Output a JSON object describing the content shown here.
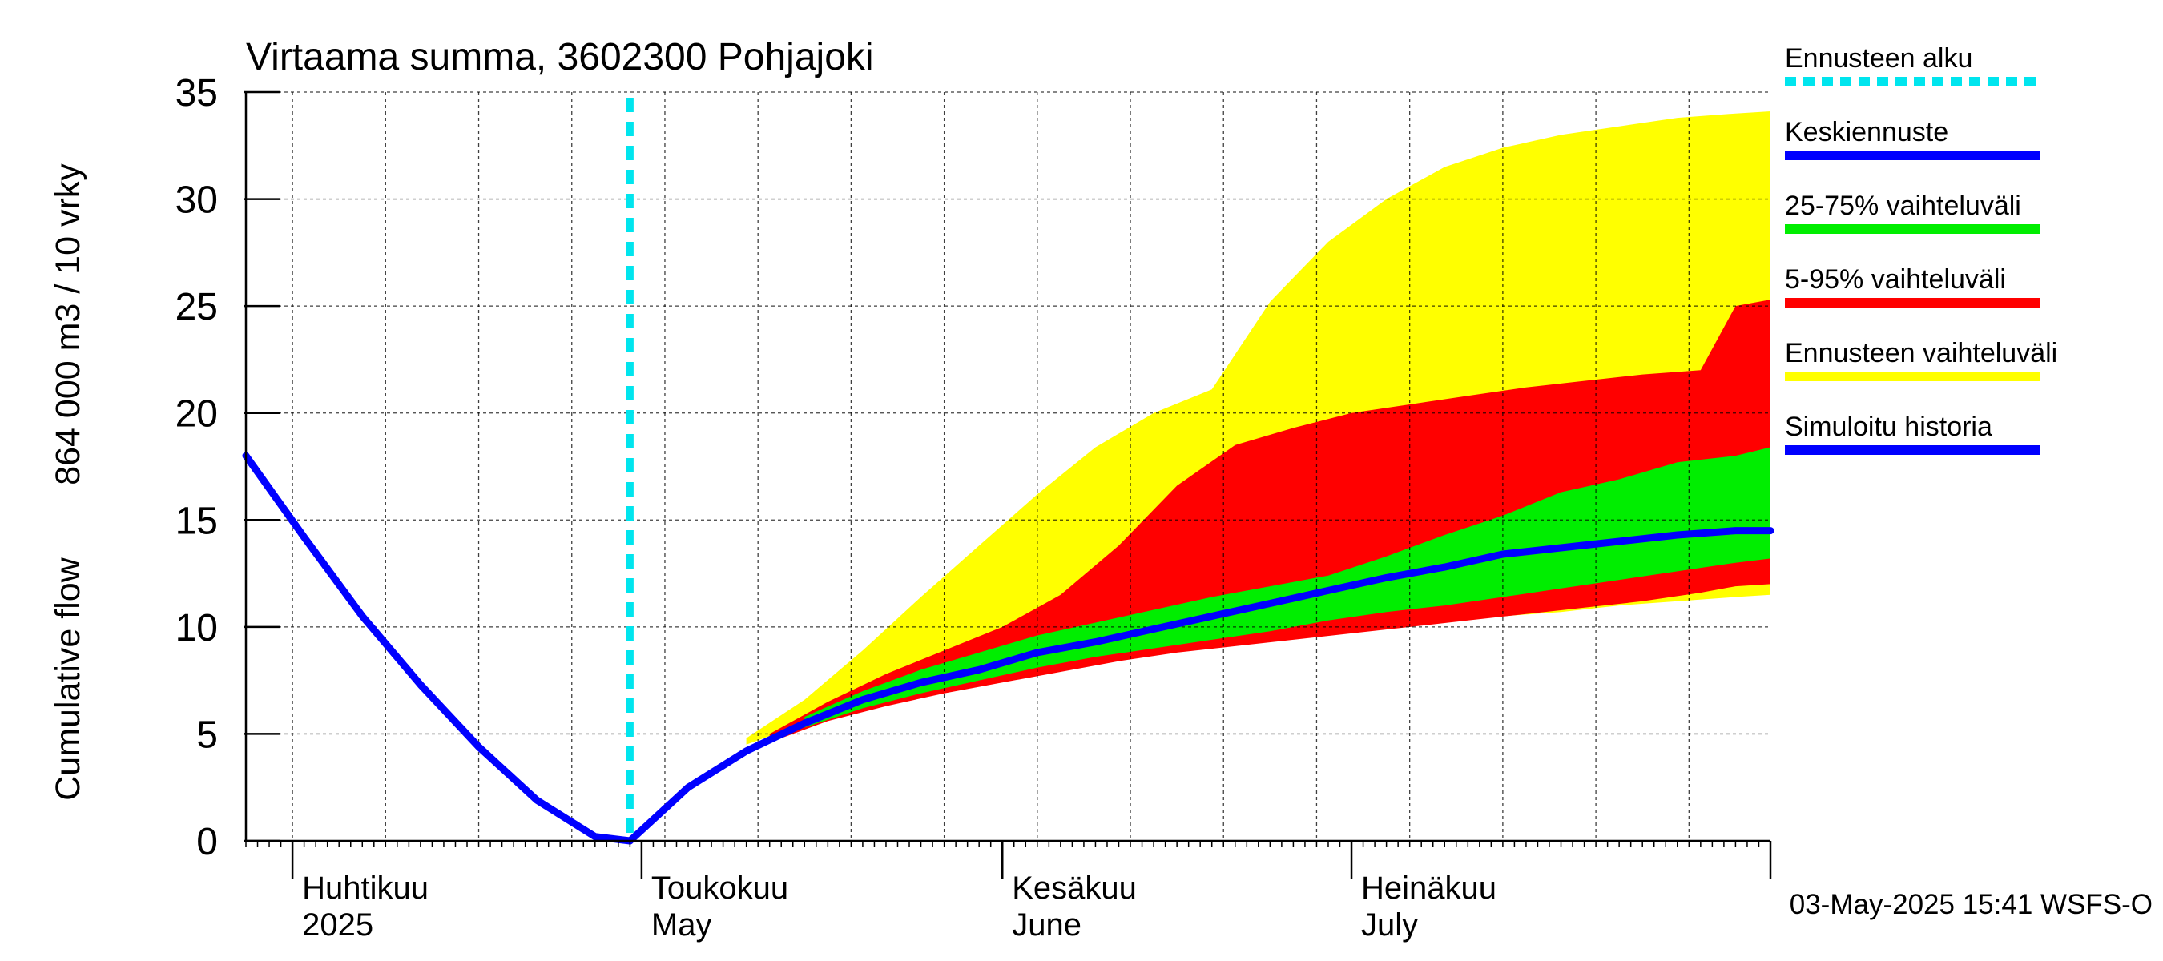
{
  "chart_data": {
    "type": "area",
    "title": "Virtaama summa, 3602300 Pohjajoki",
    "ylabel_line1": "864 000 m3 / 10 vrky",
    "ylabel_line2": "Cumulative flow",
    "ylim": [
      0,
      35
    ],
    "yticks": [
      0,
      5,
      10,
      15,
      20,
      25,
      30,
      35
    ],
    "xrange": [
      "2025-03-28",
      "2025-08-06"
    ],
    "grid": true,
    "month_labels": [
      {
        "fi": "Huhtikuu",
        "en": "2025",
        "date": "2025-04-01"
      },
      {
        "fi": "Toukokuu",
        "en": "May",
        "date": "2025-05-01"
      },
      {
        "fi": "Kesäkuu",
        "en": "June",
        "date": "2025-06-01"
      },
      {
        "fi": "Heinäkuu",
        "en": "July",
        "date": "2025-07-01"
      }
    ],
    "forecast_start": "2025-04-30",
    "series": [
      {
        "name": "Ennusteen alku",
        "color": "#00e5ee",
        "kind": "vline"
      },
      {
        "name": "Keskiennuste",
        "color": "#0000ff",
        "kind": "line",
        "x": [
          "2025-04-30",
          "2025-05-05",
          "2025-05-10",
          "2025-05-15",
          "2025-05-20",
          "2025-05-25",
          "2025-05-30",
          "2025-06-04",
          "2025-06-09",
          "2025-06-14",
          "2025-06-19",
          "2025-06-24",
          "2025-06-29",
          "2025-07-04",
          "2025-07-09",
          "2025-07-14",
          "2025-07-19",
          "2025-07-24",
          "2025-07-29",
          "2025-08-03",
          "2025-08-06"
        ],
        "y": [
          0,
          2.5,
          4.2,
          5.5,
          6.6,
          7.4,
          8.0,
          8.8,
          9.3,
          9.9,
          10.5,
          11.1,
          11.7,
          12.3,
          12.8,
          13.4,
          13.7,
          14.0,
          14.3,
          14.5,
          14.5
        ]
      },
      {
        "name": "25-75% vaihteluväli",
        "color": "#00ee00",
        "kind": "band",
        "x": [
          "2025-05-15",
          "2025-05-20",
          "2025-05-25",
          "2025-05-30",
          "2025-06-04",
          "2025-06-09",
          "2025-06-14",
          "2025-06-19",
          "2025-06-24",
          "2025-06-29",
          "2025-07-04",
          "2025-07-09",
          "2025-07-14",
          "2025-07-19",
          "2025-07-24",
          "2025-07-29",
          "2025-08-03",
          "2025-08-06"
        ],
        "low": [
          5.3,
          6.2,
          6.9,
          7.5,
          8.1,
          8.6,
          9.0,
          9.4,
          9.8,
          10.3,
          10.7,
          11.0,
          11.4,
          11.8,
          12.2,
          12.6,
          13.0,
          13.2
        ],
        "high": [
          5.8,
          7.0,
          8.0,
          8.8,
          9.6,
          10.2,
          10.8,
          11.4,
          11.9,
          12.4,
          13.3,
          14.3,
          15.2,
          16.3,
          16.9,
          17.7,
          18.0,
          18.4
        ]
      },
      {
        "name": "5-95% vaihteluväli",
        "color": "#ff0000",
        "kind": "band",
        "x": [
          "2025-05-12",
          "2025-05-17",
          "2025-05-22",
          "2025-05-27",
          "2025-06-01",
          "2025-06-06",
          "2025-06-11",
          "2025-06-16",
          "2025-06-21",
          "2025-06-26",
          "2025-07-01",
          "2025-07-06",
          "2025-07-11",
          "2025-07-16",
          "2025-07-21",
          "2025-07-26",
          "2025-07-31",
          "2025-08-03",
          "2025-08-06"
        ],
        "low": [
          4.6,
          5.6,
          6.3,
          6.9,
          7.4,
          7.9,
          8.4,
          8.8,
          9.1,
          9.4,
          9.7,
          10.0,
          10.3,
          10.6,
          10.9,
          11.2,
          11.6,
          11.9,
          12.0
        ],
        "high": [
          5.0,
          6.5,
          7.8,
          8.9,
          10.0,
          11.5,
          13.8,
          16.6,
          18.5,
          19.3,
          20.0,
          20.4,
          20.8,
          21.2,
          21.5,
          21.8,
          22.0,
          25.0,
          25.3
        ]
      },
      {
        "name": "Ennusteen vaihteluväli",
        "color": "#ffff00",
        "kind": "band",
        "x": [
          "2025-05-10",
          "2025-05-15",
          "2025-05-20",
          "2025-05-25",
          "2025-05-30",
          "2025-06-04",
          "2025-06-09",
          "2025-06-14",
          "2025-06-19",
          "2025-06-24",
          "2025-06-29",
          "2025-07-04",
          "2025-07-09",
          "2025-07-14",
          "2025-07-19",
          "2025-07-24",
          "2025-07-29",
          "2025-08-03",
          "2025-08-06"
        ],
        "low": [
          4.5,
          5.5,
          6.2,
          6.8,
          7.3,
          7.8,
          8.3,
          8.7,
          9.0,
          9.3,
          9.6,
          9.9,
          10.2,
          10.5,
          10.7,
          11.0,
          11.2,
          11.4,
          11.5
        ],
        "high": [
          4.8,
          6.6,
          8.9,
          11.4,
          13.8,
          16.2,
          18.4,
          20.0,
          21.1,
          25.2,
          28.0,
          30.0,
          31.5,
          32.4,
          33.0,
          33.4,
          33.8,
          34.0,
          34.1
        ]
      },
      {
        "name": "Simuloitu historia",
        "color": "#0000ff",
        "kind": "line",
        "x": [
          "2025-03-28",
          "2025-04-02",
          "2025-04-07",
          "2025-04-12",
          "2025-04-17",
          "2025-04-22",
          "2025-04-27",
          "2025-04-30"
        ],
        "y": [
          18.0,
          14.2,
          10.5,
          7.3,
          4.4,
          1.9,
          0.2,
          0
        ]
      }
    ],
    "footer": "03-May-2025 15:41 WSFS-O"
  }
}
